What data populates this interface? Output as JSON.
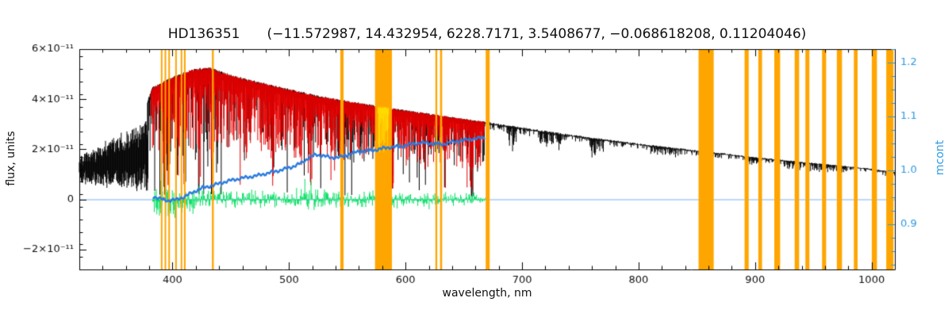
{
  "chart_data": {
    "type": "line",
    "title": "HD136351",
    "title_params": "(−11.572987, 14.432954, 6228.7171, 3.5408677, −0.068618208, 0.11204046)",
    "xlabel": "wavelength, nm",
    "ylabel_left": "flux, units",
    "ylabel_right": "mcont",
    "xlim": [
      320,
      1020
    ],
    "ylim_left": [
      -2.8e-11,
      6e-11
    ],
    "ylim_right": [
      0.8162,
      1.225
    ],
    "x_major_ticks": [
      400,
      500,
      600,
      700,
      800,
      900,
      1000
    ],
    "x_minor_step": 20,
    "y_left_major_ticks": [
      -2e-11,
      0,
      2e-11,
      4e-11,
      6e-11
    ],
    "y_left_tick_labels": [
      "−2×10⁻¹¹",
      "0",
      "2×10⁻¹¹",
      "4×10⁻¹¹",
      "6×10⁻¹¹"
    ],
    "y_left_minor_step": 5e-12,
    "y_right_major_ticks": [
      0.9,
      1.0,
      1.1,
      1.2
    ],
    "y_right_tick_labels": [
      "0.9",
      "1.0",
      "1.1",
      "1.2"
    ],
    "y_right_minor_step": 0.025,
    "colors": {
      "observed": "#000000",
      "fit": "#e60000",
      "residuals": "#00df5f",
      "continuum": "#2b7bdf",
      "right_axis": "#2e9ae0",
      "zero_line": "#79b4f2",
      "mask_band": "#ffa500",
      "highlight": "#ffdf00",
      "frame": "#000000",
      "background": "#ffffff"
    },
    "series": {
      "observed_spectrum": {
        "label": "observed spectrum",
        "color_key": "observed",
        "range_nm": [
          320,
          1020
        ],
        "envelope_keypoints": [
          [
            378.5,
            3.9e-11
          ],
          [
            383,
            4.45e-11
          ],
          [
            390,
            4.6e-11
          ],
          [
            398,
            4.8e-11
          ],
          [
            406,
            4.95e-11
          ],
          [
            414,
            5.1e-11
          ],
          [
            422,
            5.18e-11
          ],
          [
            432,
            5.22e-11
          ],
          [
            442,
            5.05e-11
          ],
          [
            452,
            4.9e-11
          ],
          [
            465,
            4.75e-11
          ],
          [
            478,
            4.6e-11
          ],
          [
            492,
            4.45e-11
          ],
          [
            506,
            4.3e-11
          ],
          [
            520,
            4.15e-11
          ],
          [
            535,
            4.02e-11
          ],
          [
            550,
            3.9e-11
          ],
          [
            565,
            3.78e-11
          ],
          [
            580,
            3.67e-11
          ],
          [
            595,
            3.56e-11
          ],
          [
            610,
            3.46e-11
          ],
          [
            625,
            3.36e-11
          ],
          [
            640,
            3.26e-11
          ],
          [
            655,
            3.16e-11
          ],
          [
            670,
            3.06e-11
          ],
          [
            690,
            2.92e-11
          ],
          [
            710,
            2.78e-11
          ],
          [
            730,
            2.64e-11
          ],
          [
            750,
            2.51e-11
          ],
          [
            775,
            2.36e-11
          ],
          [
            800,
            2.21e-11
          ],
          [
            825,
            2.07e-11
          ],
          [
            850,
            1.94e-11
          ],
          [
            875,
            1.81e-11
          ],
          [
            900,
            1.67e-11
          ],
          [
            925,
            1.56e-11
          ],
          [
            950,
            1.44e-11
          ],
          [
            975,
            1.33e-11
          ],
          [
            1000,
            1.21e-11
          ],
          [
            1020,
            1.08e-11
          ]
        ]
      },
      "uv_noise_region": {
        "range_nm": [
          320,
          378.5
        ],
        "flux_center_start_end": [
          1.2e-11,
          1.78e-11
        ],
        "half_amplitude_start_end": [
          5e-12,
          1.45e-11
        ]
      },
      "fit_spectrum": {
        "label": "synthetic fit",
        "color_key": "fit",
        "range_nm": [
          381.5,
          667.5
        ]
      },
      "residuals": {
        "label": "obs minus fit residuals",
        "color_key": "residuals",
        "range_nm": [
          383,
          671
        ],
        "zero_level": 0,
        "sigma_keypoints": [
          [
            383,
            2.6e-12
          ],
          [
            400,
            2.4e-12
          ],
          [
            425,
            2e-12
          ],
          [
            455,
            1.5e-12
          ],
          [
            490,
            1.3e-12
          ],
          [
            520,
            1.8e-12
          ],
          [
            545,
            1.4e-12
          ],
          [
            580,
            1.3e-12
          ],
          [
            615,
            1.2e-12
          ],
          [
            645,
            1e-12
          ],
          [
            671,
            8e-13
          ]
        ],
        "spike_regions": [
          [
            386,
            422,
            8e-12,
            0.06
          ],
          [
            430,
            470,
            4e-12,
            0.02
          ],
          [
            512,
            526,
            9e-12,
            0.08
          ],
          [
            540,
            562,
            5e-12,
            0.03
          ]
        ]
      },
      "continuum_ratio": {
        "label": "mcont",
        "color_key": "continuum",
        "axis": "right",
        "keypoints": [
          [
            383,
            0.952
          ],
          [
            389,
            0.9475
          ],
          [
            396,
            0.944
          ],
          [
            403,
            0.9455
          ],
          [
            410,
            0.951
          ],
          [
            418,
            0.96
          ],
          [
            426,
            0.968
          ],
          [
            434,
            0.9715
          ],
          [
            442,
            0.977
          ],
          [
            452,
            0.9825
          ],
          [
            462,
            0.9865
          ],
          [
            472,
            0.99
          ],
          [
            482,
            0.995
          ],
          [
            492,
            1.0
          ],
          [
            502,
            1.006
          ],
          [
            510,
            1.013
          ],
          [
            517,
            1.0235
          ],
          [
            523,
            1.029
          ],
          [
            529,
            1.0275
          ],
          [
            536,
            1.0235
          ],
          [
            544,
            1.0245
          ],
          [
            552,
            1.0305
          ],
          [
            560,
            1.035
          ],
          [
            568,
            1.0365
          ],
          [
            576,
            1.0385
          ],
          [
            584,
            1.0425
          ],
          [
            592,
            1.0435
          ],
          [
            600,
            1.046
          ],
          [
            608,
            1.05
          ],
          [
            616,
            1.0515
          ],
          [
            624,
            1.0495
          ],
          [
            632,
            1.0485
          ],
          [
            640,
            1.0525
          ],
          [
            648,
            1.0555
          ],
          [
            656,
            1.058
          ],
          [
            662,
            1.0595
          ],
          [
            668,
            1.061
          ]
        ]
      },
      "zero_line": {
        "flux": 0,
        "color_key": "zero_line"
      }
    },
    "strong_lines_nm": [
      [
        393.4,
        0.88,
        1.6
      ],
      [
        396.9,
        0.82,
        1.4
      ],
      [
        404.6,
        0.5,
        0.7
      ],
      [
        410.2,
        0.75,
        1.2
      ],
      [
        422.7,
        0.6,
        0.8
      ],
      [
        434.0,
        0.78,
        1.2
      ],
      [
        438.4,
        0.55,
        0.8
      ],
      [
        486.1,
        0.7,
        1.1
      ],
      [
        516.7,
        0.55,
        0.8
      ],
      [
        518.4,
        0.55,
        0.8
      ],
      [
        527.0,
        0.5,
        0.7
      ],
      [
        539.0,
        0.45,
        0.6
      ],
      [
        552.8,
        0.4,
        0.6
      ],
      [
        589.2,
        0.6,
        0.9
      ],
      [
        610.3,
        0.35,
        0.5
      ],
      [
        616.2,
        0.4,
        0.6
      ],
      [
        634.7,
        0.35,
        0.5
      ],
      [
        656.3,
        0.8,
        1.3
      ]
    ],
    "telluric_bands_nm": [
      [
        686,
        695,
        0.3
      ],
      [
        715,
        735,
        0.18
      ],
      [
        758,
        770,
        0.4
      ],
      [
        810,
        835,
        0.12
      ],
      [
        891,
        905,
        0.18
      ],
      [
        925,
        980,
        0.2
      ],
      [
        1005,
        1020,
        0.15
      ]
    ],
    "mask_bands": {
      "color_key": "mask_band",
      "regions_nm": [
        [
          390.0,
          391.3
        ],
        [
          393.2,
          394.4
        ],
        [
          396.4,
          397.7
        ],
        [
          402.3,
          403.5
        ],
        [
          407.0,
          408.2
        ],
        [
          409.8,
          411.2
        ],
        [
          433.8,
          435.4
        ],
        [
          544.0,
          546.8
        ],
        [
          573.8,
          588.3
        ],
        [
          625.6,
          627.2
        ],
        [
          629.6,
          631.4
        ],
        [
          668.8,
          672.2
        ],
        [
          851.5,
          864.5
        ],
        [
          891.0,
          894.5
        ],
        [
          902.8,
          906.0
        ],
        [
          916.5,
          921.5
        ],
        [
          934.0,
          937.8
        ],
        [
          943.2,
          946.6
        ],
        [
          957.5,
          961.0
        ],
        [
          970.2,
          974.6
        ],
        [
          984.8,
          988.0
        ],
        [
          1000.2,
          1004.6
        ],
        [
          1012.6,
          1018.8
        ]
      ]
    },
    "highlight_segment": {
      "color_key": "highlight",
      "range_nm": [
        576.5,
        585.5
      ]
    }
  }
}
